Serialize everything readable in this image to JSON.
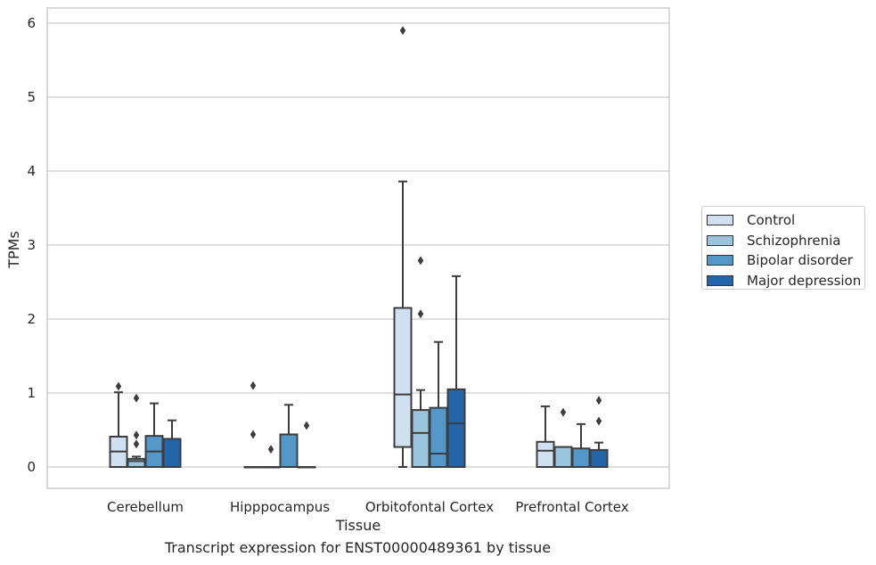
{
  "chart_data": {
    "type": "box",
    "xlabel": "Tissue",
    "ylabel": "TPMs",
    "caption": "Transcript expression for ENST00000489361 by tissue",
    "ylim": [
      -0.28,
      6.2
    ],
    "yticks": [
      0,
      1,
      2,
      3,
      4,
      5,
      6
    ],
    "grid": true,
    "legend_position": "right",
    "categories": [
      "Cerebellum",
      "Hipppocampus",
      "Orbitofontal Cortex",
      "Prefrontal Cortex"
    ],
    "series": [
      {
        "name": "Control",
        "color": "#d1e0f0",
        "boxes": [
          {
            "whislo": 0,
            "q1": 0,
            "med": 0.21,
            "q3": 0.41,
            "whishi": 1.01,
            "fliers": [
              1.09
            ]
          },
          {
            "whislo": 0,
            "q1": 0,
            "med": 0,
            "q3": 0,
            "whishi": 0,
            "fliers": [
              0.44,
              1.1
            ]
          },
          {
            "whislo": 0,
            "q1": 0.27,
            "med": 0.98,
            "q3": 2.15,
            "whishi": 3.86,
            "fliers": [
              5.9
            ]
          },
          {
            "whislo": 0,
            "q1": 0,
            "med": 0.22,
            "q3": 0.34,
            "whishi": 0.82,
            "fliers": []
          }
        ]
      },
      {
        "name": "Schizophrenia",
        "color": "#9ac3de",
        "boxes": [
          {
            "whislo": 0,
            "q1": 0,
            "med": 0.08,
            "q3": 0.11,
            "whishi": 0.14,
            "fliers": [
              0.31,
              0.43,
              0.93
            ]
          },
          {
            "whislo": 0,
            "q1": 0,
            "med": 0,
            "q3": 0,
            "whishi": 0,
            "fliers": [
              0.24
            ]
          },
          {
            "whislo": 0,
            "q1": 0,
            "med": 0.46,
            "q3": 0.77,
            "whishi": 1.04,
            "fliers": [
              2.07,
              2.79
            ]
          },
          {
            "whislo": 0,
            "q1": 0,
            "med": 0,
            "q3": 0.27,
            "whishi": 0.27,
            "fliers": [
              0.74
            ]
          }
        ]
      },
      {
        "name": "Bipolar disorder",
        "color": "#5398c9",
        "boxes": [
          {
            "whislo": 0,
            "q1": 0,
            "med": 0.21,
            "q3": 0.42,
            "whishi": 0.86,
            "fliers": []
          },
          {
            "whislo": 0,
            "q1": 0,
            "med": 0,
            "q3": 0.44,
            "whishi": 0.84,
            "fliers": []
          },
          {
            "whislo": 0,
            "q1": 0,
            "med": 0.18,
            "q3": 0.8,
            "whishi": 1.69,
            "fliers": []
          },
          {
            "whislo": 0,
            "q1": 0,
            "med": 0,
            "q3": 0.25,
            "whishi": 0.58,
            "fliers": []
          }
        ]
      },
      {
        "name": "Major depression",
        "color": "#2464a8",
        "boxes": [
          {
            "whislo": 0,
            "q1": 0,
            "med": 0,
            "q3": 0.38,
            "whishi": 0.63,
            "fliers": []
          },
          {
            "whislo": 0,
            "q1": 0,
            "med": 0,
            "q3": 0,
            "whishi": 0,
            "fliers": [
              0.56
            ]
          },
          {
            "whislo": 0,
            "q1": 0,
            "med": 0.59,
            "q3": 1.05,
            "whishi": 2.58,
            "fliers": []
          },
          {
            "whislo": 0,
            "q1": 0,
            "med": 0,
            "q3": 0.23,
            "whishi": 0.33,
            "fliers": [
              0.62,
              0.9
            ]
          }
        ]
      }
    ]
  }
}
